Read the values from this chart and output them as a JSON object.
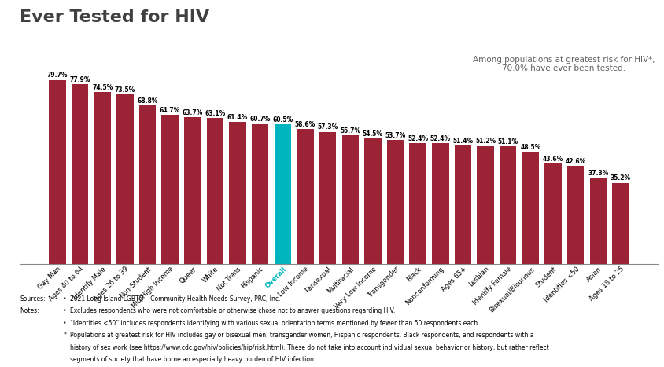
{
  "title": "Ever Tested for HIV",
  "title_color": "#404040",
  "annotation": "Among populations at greatest risk for HIV*,\n70.0% have ever been tested.",
  "annotation_color": "#606060",
  "categories": [
    "Gay Man",
    "Ages 40 to 64",
    "Identify Male",
    "Ages 26 to 39",
    "Non-Student",
    "Mid/High Income",
    "Queer",
    "White",
    "Not Trans",
    "Hispanic",
    "Overall",
    "Low Income",
    "Pansexual",
    "Multiracial",
    "Very Low Income",
    "Transgender",
    "Black",
    "Nonconforming",
    "Ages 65+",
    "Lesbian",
    "Identify Female",
    "Bisexual/Bicurious",
    "Student",
    "Identities <50",
    "Asian",
    "Ages 18 to 25"
  ],
  "values": [
    79.7,
    77.9,
    74.5,
    73.5,
    68.8,
    64.7,
    63.7,
    63.1,
    61.4,
    60.7,
    60.5,
    58.6,
    57.3,
    55.7,
    54.5,
    53.7,
    52.4,
    52.4,
    51.4,
    51.2,
    51.1,
    48.5,
    43.6,
    42.6,
    37.3,
    35.2
  ],
  "bar_colors": [
    "#9B2335",
    "#9B2335",
    "#9B2335",
    "#9B2335",
    "#9B2335",
    "#9B2335",
    "#9B2335",
    "#9B2335",
    "#9B2335",
    "#9B2335",
    "#00B5BD",
    "#9B2335",
    "#9B2335",
    "#9B2335",
    "#9B2335",
    "#9B2335",
    "#9B2335",
    "#9B2335",
    "#9B2335",
    "#9B2335",
    "#9B2335",
    "#9B2335",
    "#9B2335",
    "#9B2335",
    "#9B2335",
    "#9B2335"
  ],
  "overall_index": 10,
  "overall_label_color": "#00B5BD",
  "background_color": "#FFFFFF",
  "title_fontsize": 16,
  "value_fontsize": 5.5,
  "tick_fontsize": 6.0,
  "ylim": [
    0,
    92
  ],
  "footnote_sources_label": "Sources:",
  "footnote_notes_label": "Notes:",
  "footnote_source": "2021 Long Island LGBTQ+ Community Health Needs Survey, PRC, Inc.",
  "footnote_note1": "Excludes respondents who were not comfortable or otherwise chose not to answer questions regarding HIV.",
  "footnote_note2": "“Identities <50” includes respondents identifying with various sexual orientation terms mentioned by fewer than 50 respondents each.",
  "footnote_note3a": "Populations at greatest risk for HIV includes gay or bisexual men, transgender women, Hispanic respondents, Black respondents, and respondents with a",
  "footnote_note3b": "history of sex work (see https://www.cdc.gov/hiv/policies/hip/risk.html). These do not take into account individual sexual behavior or history, but rather reflect",
  "footnote_note3c": "segments of society that have borne an especially heavy burden of HIV infection."
}
